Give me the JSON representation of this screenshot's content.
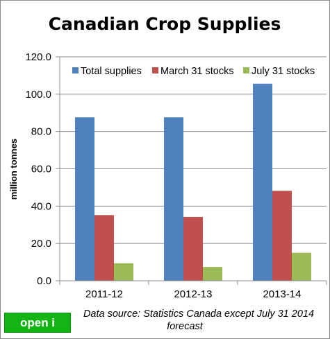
{
  "chart_data": {
    "type": "bar",
    "title": "Canadian Crop Supplies",
    "ylabel": "million tonnes",
    "xlabel": "",
    "categories": [
      "2011-12",
      "2012-13",
      "2013-14"
    ],
    "series": [
      {
        "name": "Total supplies",
        "color": "#4f81bd",
        "values": [
          87.6,
          87.6,
          105.6
        ]
      },
      {
        "name": "March 31 stocks",
        "color": "#c0504d",
        "values": [
          35.2,
          34.2,
          48.2
        ]
      },
      {
        "name": "July 31 stocks",
        "color": "#9bbb59",
        "values": [
          9.4,
          7.4,
          15.0
        ]
      }
    ],
    "ylim": [
      0,
      120
    ],
    "yticks": [
      "0.0",
      "20.0",
      "40.0",
      "60.0",
      "80.0",
      "100.0",
      "120.0"
    ],
    "grid": true,
    "legend": "top"
  },
  "source_line1": "Data source:  Statistics Canada except July 31 2014",
  "source_line2": "forecast",
  "button": {
    "label": "open i",
    "color": "#13b413"
  }
}
